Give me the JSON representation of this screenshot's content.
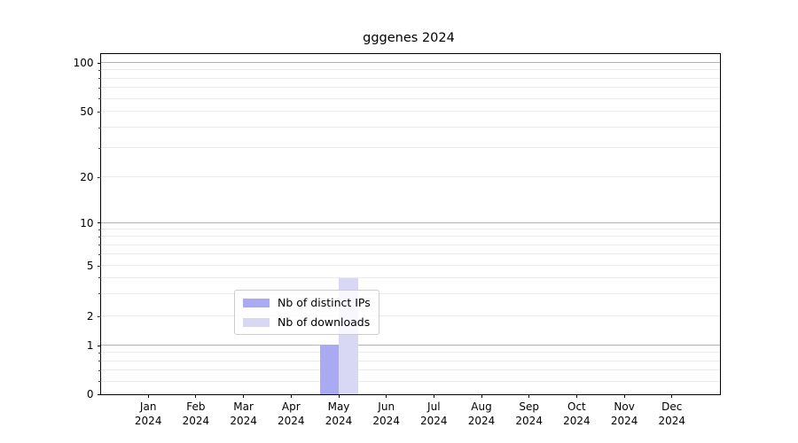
{
  "chart_data": {
    "type": "bar",
    "title": "gggenes 2024",
    "categories": [
      "Jan",
      "Feb",
      "Mar",
      "Apr",
      "May",
      "Jun",
      "Jul",
      "Aug",
      "Sep",
      "Oct",
      "Nov",
      "Dec"
    ],
    "x_year": "2024",
    "series": [
      {
        "name": "Nb of distinct IPs",
        "color": "#aaaaf2",
        "values": [
          0,
          0,
          0,
          0,
          1,
          0,
          0,
          0,
          0,
          0,
          0,
          0
        ]
      },
      {
        "name": "Nb of downloads",
        "color": "#d8d8f5",
        "values": [
          0,
          0,
          0,
          0,
          4,
          0,
          0,
          0,
          0,
          0,
          0,
          0
        ]
      }
    ],
    "y_ticks": [
      0,
      1,
      2,
      5,
      10,
      20,
      50,
      100
    ],
    "y_tick_labels": [
      "0",
      "1",
      "2",
      "5",
      "10",
      "20",
      "50",
      "100"
    ],
    "y_gridlines_major": [
      1,
      10,
      100
    ],
    "y_gridlines_minor": [
      0.6,
      0.7,
      0.8,
      0.9,
      2,
      3,
      4,
      5,
      6,
      7,
      8,
      9,
      20,
      30,
      40,
      50,
      60,
      70,
      80,
      90
    ],
    "ylim": [
      0,
      120
    ],
    "yscale": "symlog",
    "grid": "horizontal major and minor gridlines",
    "legend_position": "inside lower-center",
    "legend_items": [
      "Nb of distinct IPs",
      "Nb of downloads"
    ]
  }
}
